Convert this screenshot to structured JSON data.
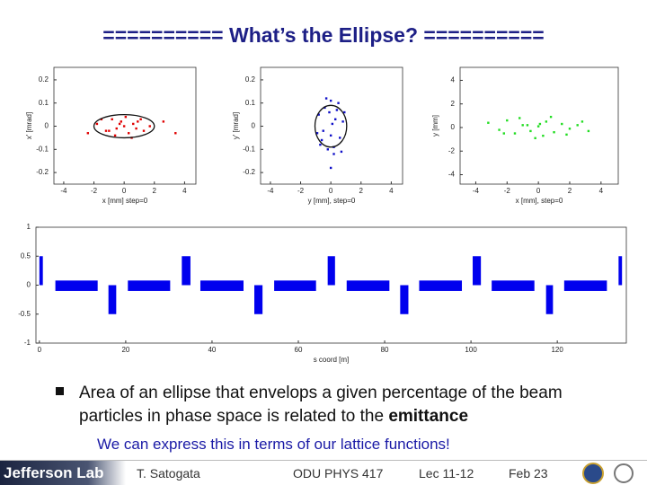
{
  "title": "========== What’s the Ellipse? ==========",
  "plots": [
    {
      "type": "scatter",
      "color": "#e00000",
      "xlabel": "x [mm]  step=0",
      "ylabel": "x' [mrad]",
      "xlim": [
        -4.65,
        4.75
      ],
      "ylim": [
        -0.25,
        0.254
      ],
      "xticks": [
        -4,
        -2,
        0,
        2,
        4
      ],
      "yticks": [
        0.2,
        0.1,
        0,
        -0.1,
        -0.2
      ],
      "x": [
        -1.8,
        -1.2,
        -0.8,
        -0.5,
        -0.2,
        0,
        0.3,
        0.6,
        0.9,
        1.3,
        1.7,
        -1.5,
        -0.6,
        0.1,
        0.5,
        1.1,
        -2.4,
        2.6,
        3.4,
        -1.0,
        0.8,
        -0.3
      ],
      "y": [
        0.01,
        -0.02,
        0.03,
        -0.01,
        0.02,
        0,
        -0.03,
        0.01,
        0.02,
        -0.02,
        0,
        0.03,
        -0.04,
        0.04,
        -0.05,
        0.03,
        -0.03,
        0.02,
        -0.03,
        -0.02,
        -0.01,
        0.01
      ],
      "ellipse": {
        "rx": 2.0,
        "ry": 0.05
      }
    },
    {
      "type": "scatter",
      "color": "#1010c8",
      "xlabel": "y [mm], step=0",
      "ylabel": "y' [mrad]",
      "xlim": [
        -4.65,
        4.75
      ],
      "ylim": [
        -0.25,
        0.254
      ],
      "xticks": [
        -4,
        -2,
        0,
        2,
        4
      ],
      "yticks": [
        0.2,
        0.1,
        0,
        -0.1,
        -0.2
      ],
      "x": [
        -0.8,
        -0.6,
        -0.4,
        -0.2,
        0,
        0.2,
        0.4,
        0.6,
        0.8,
        -0.5,
        0.3,
        0,
        -0.1,
        0.5,
        -0.7,
        0.7,
        0.1,
        -0.3,
        0.2,
        -0.9,
        0.9,
        0
      ],
      "y": [
        0.05,
        -0.06,
        0.08,
        -0.1,
        0.11,
        -0.09,
        0.07,
        -0.05,
        0.02,
        -0.02,
        0.03,
        -0.04,
        0.06,
        0.1,
        -0.08,
        -0.11,
        0.01,
        0.12,
        -0.12,
        -0.03,
        0.06,
        -0.18
      ],
      "ellipse": {
        "rx": 1.05,
        "ry": 0.09
      }
    },
    {
      "type": "scatter",
      "color": "#22dd22",
      "xlabel": "x [mm], step=0",
      "ylabel": "y [mm]",
      "xlim": [
        -5,
        5.1
      ],
      "ylim": [
        -4.8,
        5.1
      ],
      "xticks": [
        -4,
        -2,
        0,
        2,
        4
      ],
      "yticks": [
        4,
        2,
        0,
        -2,
        -4
      ],
      "x": [
        -3.2,
        -2.5,
        -2,
        -1.5,
        -1,
        -0.5,
        0,
        0.5,
        1,
        1.5,
        2,
        2.5,
        3.2,
        -1.2,
        0.3,
        0.8,
        -0.2,
        1.8,
        -2.2,
        2.8,
        0.1,
        -0.7
      ],
      "y": [
        0.4,
        -0.2,
        0.6,
        -0.5,
        0.2,
        -0.3,
        0.1,
        0.5,
        -0.4,
        0.3,
        -0.1,
        0.2,
        -0.3,
        0.8,
        -0.7,
        0.9,
        -0.9,
        -0.6,
        -0.5,
        0.5,
        0.3,
        0.2
      ]
    }
  ],
  "lattice": {
    "type": "lattice",
    "color": "#0000ee",
    "xlabel": "s coord [m]",
    "xlim": [
      -0.8,
      136
    ],
    "ylim": [
      -1,
      1
    ],
    "xticks": [
      0,
      20,
      40,
      60,
      80,
      100,
      120
    ],
    "yticks": [
      1,
      0.5,
      0,
      -0.5,
      -1
    ],
    "elements": [
      {
        "start": 0,
        "end": 0.8,
        "low": 0,
        "high": 0.5
      },
      {
        "start": 3.7,
        "end": 13.5,
        "low": -0.1,
        "high": 0.08
      },
      {
        "start": 16,
        "end": 17.8,
        "low": -0.5,
        "high": 0
      },
      {
        "start": 20.5,
        "end": 30.3,
        "low": -0.1,
        "high": 0.08
      },
      {
        "start": 33,
        "end": 35,
        "low": 0,
        "high": 0.5
      },
      {
        "start": 37.3,
        "end": 47.3,
        "low": -0.1,
        "high": 0.08
      },
      {
        "start": 49.8,
        "end": 51.7,
        "low": -0.5,
        "high": 0
      },
      {
        "start": 54.4,
        "end": 64.1,
        "low": -0.1,
        "high": 0.08
      },
      {
        "start": 66.8,
        "end": 68.5,
        "low": 0,
        "high": 0.5
      },
      {
        "start": 71.2,
        "end": 81.1,
        "low": -0.1,
        "high": 0.08
      },
      {
        "start": 83.6,
        "end": 85.5,
        "low": -0.5,
        "high": 0
      },
      {
        "start": 88,
        "end": 97.9,
        "low": -0.1,
        "high": 0.08
      },
      {
        "start": 100.4,
        "end": 102.3,
        "low": 0,
        "high": 0.5
      },
      {
        "start": 104.8,
        "end": 114.7,
        "low": -0.1,
        "high": 0.08
      },
      {
        "start": 117.4,
        "end": 119,
        "low": -0.5,
        "high": 0
      },
      {
        "start": 121.6,
        "end": 131.5,
        "low": -0.1,
        "high": 0.08
      },
      {
        "start": 134.2,
        "end": 135,
        "low": 0,
        "high": 0.5
      }
    ]
  },
  "bullet": {
    "text": "Area of an ellipse that envelops a given percentage of the beam particles in phase space is related to the",
    "emphasis": "emittance"
  },
  "subtext": "We can express this in terms of our lattice functions!",
  "footer": {
    "logo": "Jefferson Lab",
    "author": "T. Satogata",
    "course": "ODU PHYS 417",
    "lecture": "Lec 11-12",
    "date": "Feb 23"
  }
}
